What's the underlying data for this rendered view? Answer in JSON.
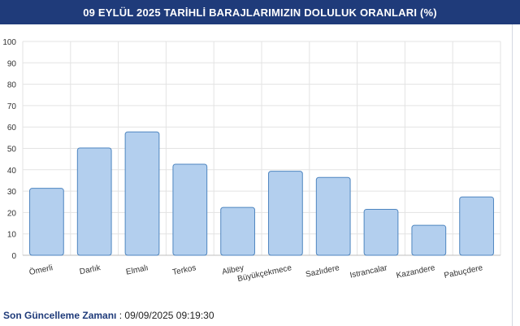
{
  "header": {
    "title": "09 EYLÜL 2025 TARİHLİ BARAJLARIMIZIN DOLULUK ORANLARI (%)"
  },
  "footer": {
    "label": "Son Güncelleme Zamanı",
    "separator": " : ",
    "value": "09/09/2025 09:19:30"
  },
  "chart_data": {
    "type": "bar",
    "title": "09 EYLÜL 2025 TARİHLİ BARAJLARIMIZIN DOLULUK ORANLARI (%)",
    "categories": [
      "Ömerli",
      "Darlık",
      "Elmalı",
      "Terkos",
      "Alibey",
      "Büyükçekmece",
      "Sazlıdere",
      "Istrancalar",
      "Kazandere",
      "Pabuçdere"
    ],
    "values": [
      31.3,
      50.2,
      57.7,
      42.6,
      22.4,
      39.3,
      36.4,
      21.5,
      14.0,
      27.3
    ],
    "ylim": [
      0,
      100
    ],
    "yticks": [
      0,
      10,
      20,
      30,
      40,
      50,
      60,
      70,
      80,
      90,
      100
    ],
    "grid": true,
    "colors": {
      "bar_fill": "#b3cfee",
      "bar_stroke": "#4f86c0",
      "grid": "#e3e3e3",
      "axis_text": "#333333"
    }
  }
}
